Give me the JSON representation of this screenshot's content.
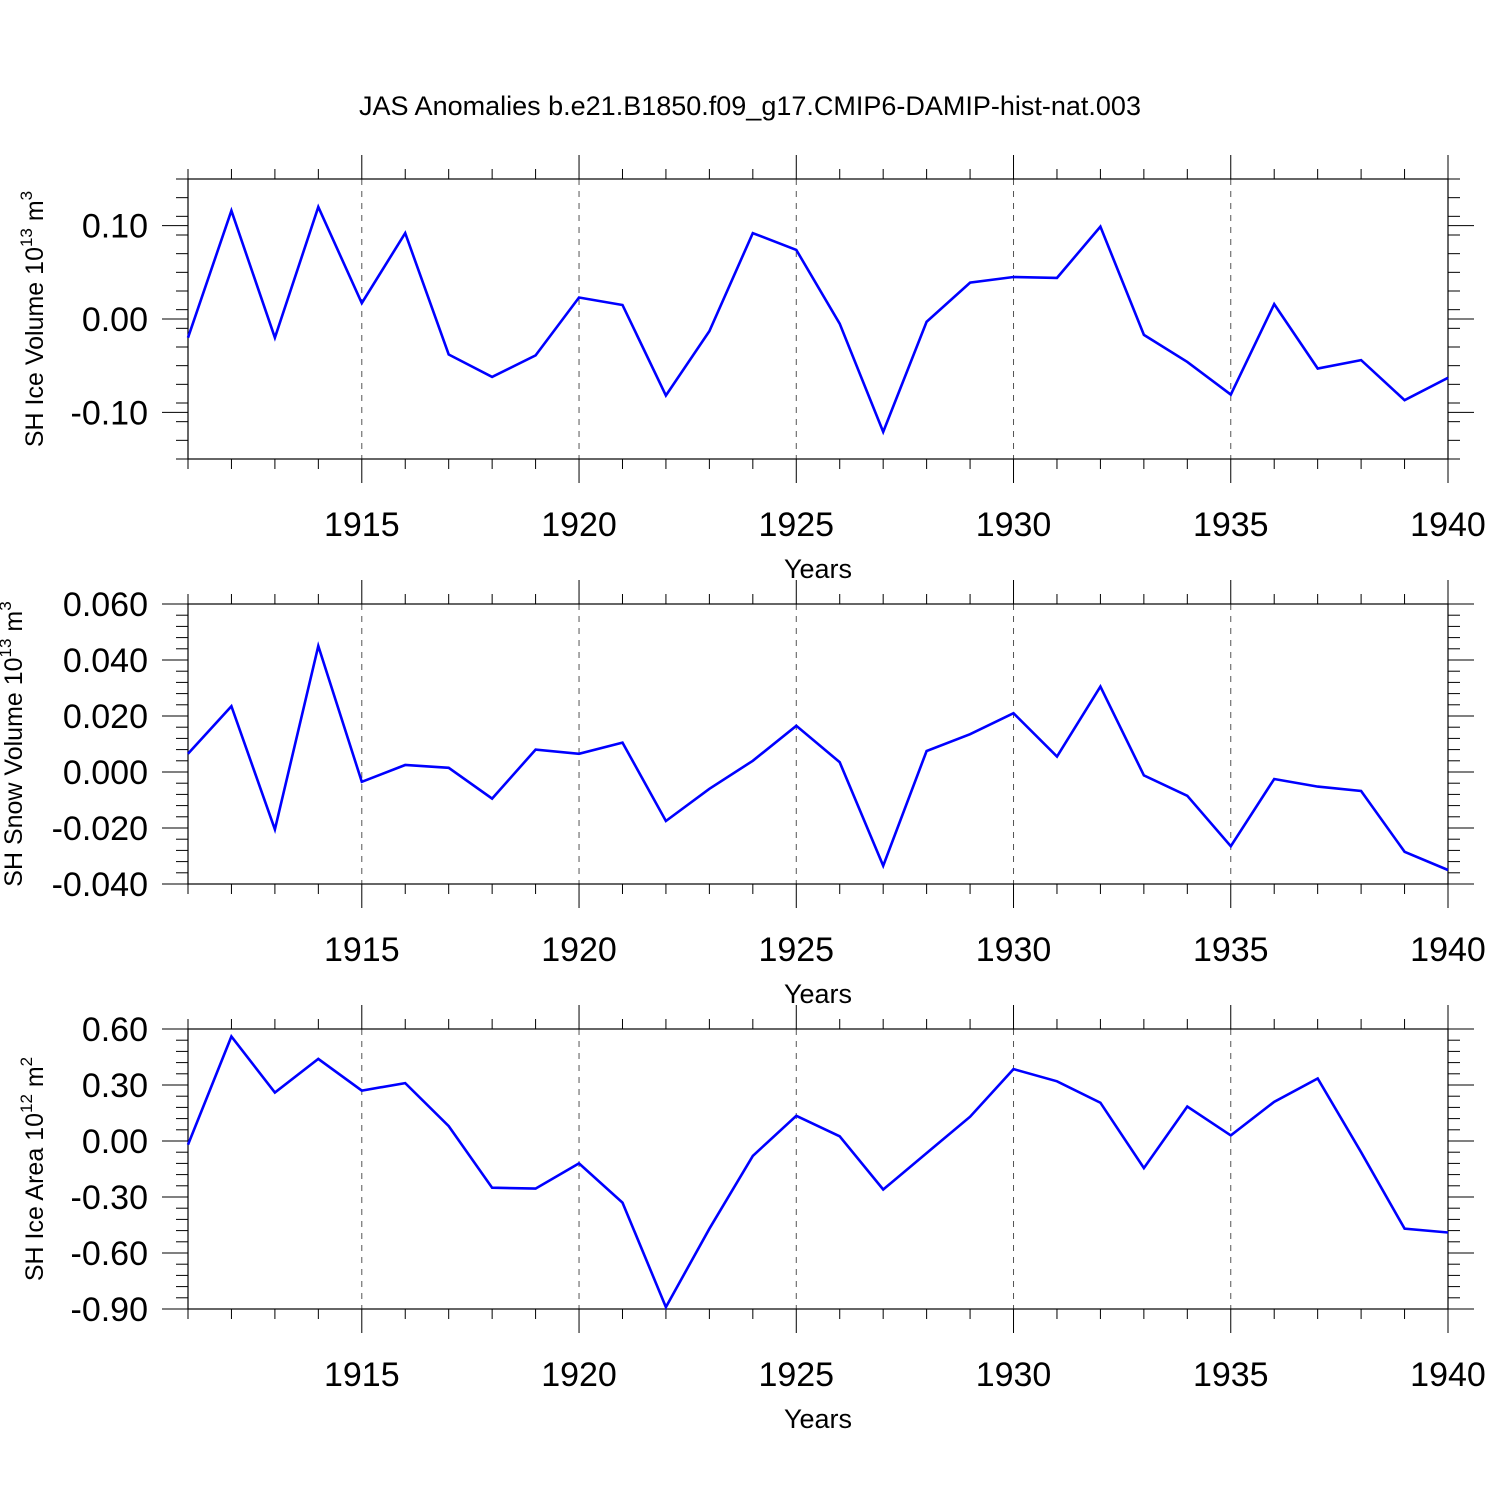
{
  "title": "JAS Anomalies b.e21.B1850.f09_g17.CMIP6-DAMIP-hist-nat.003",
  "colors": {
    "line": "#0000ff",
    "axis": "#000000",
    "grid": "#555555"
  },
  "chart_data": [
    {
      "type": "line",
      "ylabel_main": "SH Ice Volume 10",
      "ylabel_exp": "13",
      "ylabel_unit": " m",
      "ylabel_unit_exp": "3",
      "xlabel": "Years",
      "xlim": [
        1911,
        1940
      ],
      "ylim": [
        -0.15,
        0.15
      ],
      "yticks": [
        -0.1,
        0.0,
        0.1
      ],
      "ytick_labels": [
        "-0.10",
        "0.00",
        "0.10"
      ],
      "xticks": [
        1915,
        1920,
        1925,
        1930,
        1935,
        1940
      ],
      "xtick_labels": [
        "1915",
        "1920",
        "1925",
        "1930",
        "1935",
        "1940"
      ],
      "grid_x": [
        1915,
        1920,
        1925,
        1930,
        1935
      ],
      "x": [
        1911,
        1912,
        1913,
        1914,
        1915,
        1916,
        1917,
        1918,
        1919,
        1920,
        1921,
        1922,
        1923,
        1924,
        1925,
        1926,
        1927,
        1928,
        1929,
        1930,
        1931,
        1932,
        1933,
        1934,
        1935,
        1936,
        1937,
        1938,
        1939,
        1940
      ],
      "values": [
        -0.02,
        0.116,
        -0.02,
        0.12,
        0.017,
        0.092,
        -0.038,
        -0.062,
        -0.039,
        0.023,
        0.015,
        -0.082,
        -0.013,
        0.092,
        0.074,
        -0.005,
        -0.121,
        -0.003,
        0.039,
        0.045,
        0.044,
        0.099,
        -0.017,
        -0.046,
        -0.081,
        0.016,
        -0.053,
        -0.044,
        -0.087,
        -0.063
      ]
    },
    {
      "type": "line",
      "ylabel_main": "SH Snow Volume 10",
      "ylabel_exp": "13",
      "ylabel_unit": " m",
      "ylabel_unit_exp": "3",
      "xlabel": "Years",
      "xlim": [
        1911,
        1940
      ],
      "ylim": [
        -0.04,
        0.06
      ],
      "yticks": [
        -0.04,
        -0.02,
        0.0,
        0.02,
        0.04,
        0.06
      ],
      "ytick_labels": [
        "-0.040",
        "-0.020",
        "0.000",
        "0.020",
        "0.040",
        "0.060"
      ],
      "xticks": [
        1915,
        1920,
        1925,
        1930,
        1935,
        1940
      ],
      "xtick_labels": [
        "1915",
        "1920",
        "1925",
        "1930",
        "1935",
        "1940"
      ],
      "grid_x": [
        1915,
        1920,
        1925,
        1930,
        1935
      ],
      "x": [
        1911,
        1912,
        1913,
        1914,
        1915,
        1916,
        1917,
        1918,
        1919,
        1920,
        1921,
        1922,
        1923,
        1924,
        1925,
        1926,
        1927,
        1928,
        1929,
        1930,
        1931,
        1932,
        1933,
        1934,
        1935,
        1936,
        1937,
        1938,
        1939,
        1940
      ],
      "values": [
        0.0065,
        0.0235,
        -0.0205,
        0.045,
        -0.0035,
        0.0025,
        0.0015,
        -0.0095,
        0.008,
        0.0065,
        0.0105,
        -0.0175,
        -0.006,
        0.004,
        0.0165,
        0.0035,
        -0.0335,
        0.0075,
        0.0135,
        0.021,
        0.0055,
        0.0305,
        -0.0012,
        -0.0085,
        -0.0265,
        -0.0025,
        -0.0052,
        -0.0068,
        -0.0285,
        -0.035
      ]
    },
    {
      "type": "line",
      "ylabel_main": "SH Ice Area 10",
      "ylabel_exp": "12",
      "ylabel_unit": " m",
      "ylabel_unit_exp": "2",
      "xlabel": "Years",
      "xlim": [
        1911,
        1940
      ],
      "ylim": [
        -0.9,
        0.6
      ],
      "yticks": [
        -0.9,
        -0.6,
        -0.3,
        0.0,
        0.3,
        0.6
      ],
      "ytick_labels": [
        "-0.90",
        "-0.60",
        "-0.30",
        "0.00",
        "0.30",
        "0.60"
      ],
      "xticks": [
        1915,
        1920,
        1925,
        1930,
        1935,
        1940
      ],
      "xtick_labels": [
        "1915",
        "1920",
        "1925",
        "1930",
        "1935",
        "1940"
      ],
      "grid_x": [
        1915,
        1920,
        1925,
        1930,
        1935
      ],
      "x": [
        1911,
        1912,
        1913,
        1914,
        1915,
        1916,
        1917,
        1918,
        1919,
        1920,
        1921,
        1922,
        1923,
        1924,
        1925,
        1926,
        1927,
        1928,
        1929,
        1930,
        1931,
        1932,
        1933,
        1934,
        1935,
        1936,
        1937,
        1938,
        1939,
        1940
      ],
      "values": [
        -0.02,
        0.56,
        0.26,
        0.44,
        0.27,
        0.31,
        0.08,
        -0.25,
        -0.255,
        -0.12,
        -0.33,
        -0.89,
        -0.47,
        -0.08,
        0.135,
        0.025,
        -0.26,
        -0.065,
        0.13,
        0.385,
        0.32,
        0.205,
        -0.145,
        0.185,
        0.03,
        0.21,
        0.335,
        -0.06,
        -0.47,
        -0.49
      ]
    }
  ]
}
